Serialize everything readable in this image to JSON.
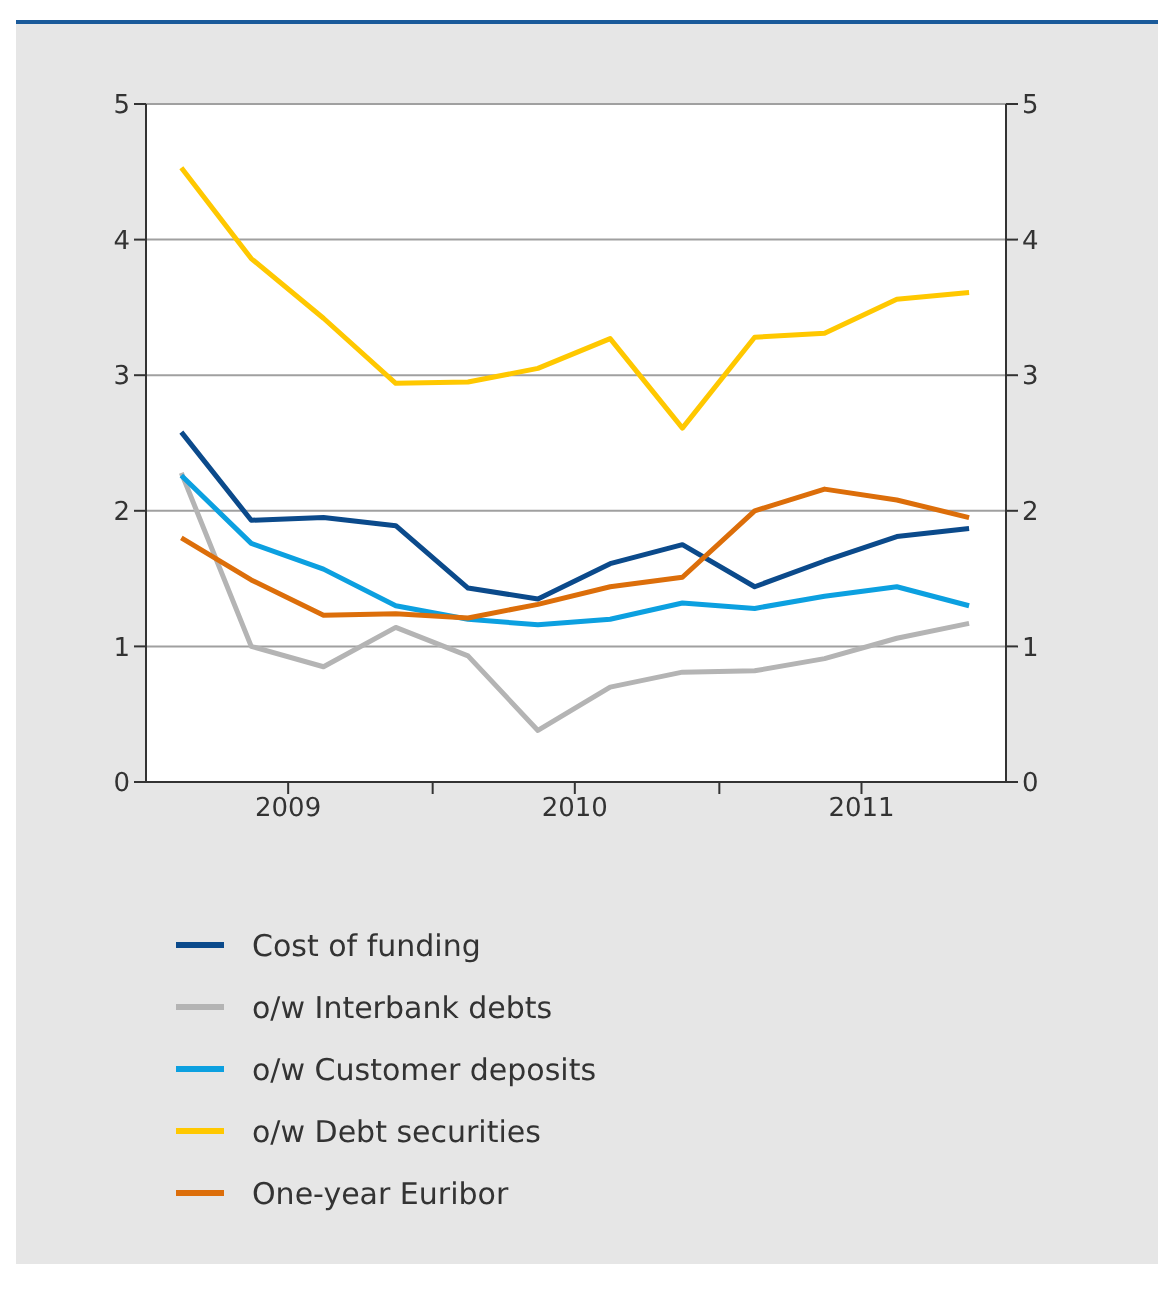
{
  "chart_data": {
    "type": "line",
    "x": [
      "2009-02-15",
      "2009-05-15",
      "2009-08-15",
      "2009-11-15",
      "2010-02-15",
      "2010-05-15",
      "2010-08-15",
      "2010-11-15",
      "2011-02-15",
      "2011-05-15",
      "2011-08-15",
      "2011-11-15"
    ],
    "series": [
      {
        "name": "Cost of funding",
        "color": "#0b4a8b",
        "values": [
          2.58,
          1.93,
          1.95,
          1.89,
          1.43,
          1.35,
          1.61,
          1.75,
          1.44,
          1.63,
          1.81,
          1.87
        ]
      },
      {
        "name": "o/w Interbank debts",
        "color": "#b4b4b4",
        "values": [
          2.28,
          1.0,
          0.85,
          1.14,
          0.93,
          0.38,
          0.7,
          0.81,
          0.82,
          0.91,
          1.06,
          1.17
        ]
      },
      {
        "name": "o/w Customer deposits",
        "color": "#0ca0e0",
        "values": [
          2.26,
          1.76,
          1.57,
          1.3,
          1.2,
          1.16,
          1.2,
          1.32,
          1.28,
          1.37,
          1.44,
          1.3
        ]
      },
      {
        "name": "o/w Debt securities",
        "color": "#ffc800",
        "values": [
          4.53,
          3.86,
          3.42,
          2.94,
          2.95,
          3.05,
          3.27,
          2.61,
          3.28,
          3.31,
          3.56,
          3.61
        ]
      },
      {
        "name": "One-year Euribor",
        "color": "#dc6e0a",
        "values": [
          1.8,
          1.49,
          1.23,
          1.24,
          1.21,
          1.31,
          1.44,
          1.51,
          2.0,
          2.16,
          2.08,
          1.95
        ]
      }
    ],
    "xlim": [
      "2009-01-01",
      "2012-01-01"
    ],
    "xticks": [
      {
        "value": "2009-07-01",
        "label": "2009"
      },
      {
        "value": "2010-01-01",
        "label": null
      },
      {
        "value": "2010-07-01",
        "label": "2010"
      },
      {
        "value": "2011-01-01",
        "label": null
      },
      {
        "value": "2011-07-01",
        "label": "2011"
      }
    ],
    "ylim": [
      0,
      5
    ],
    "yticks": [
      0,
      1,
      2,
      3,
      4,
      5
    ],
    "y2lim": [
      0,
      5
    ],
    "y2ticks": [
      0,
      1,
      2,
      3,
      4,
      5
    ],
    "grid": "y",
    "legend": "bottom",
    "marker": "none",
    "line_style": "solid"
  }
}
